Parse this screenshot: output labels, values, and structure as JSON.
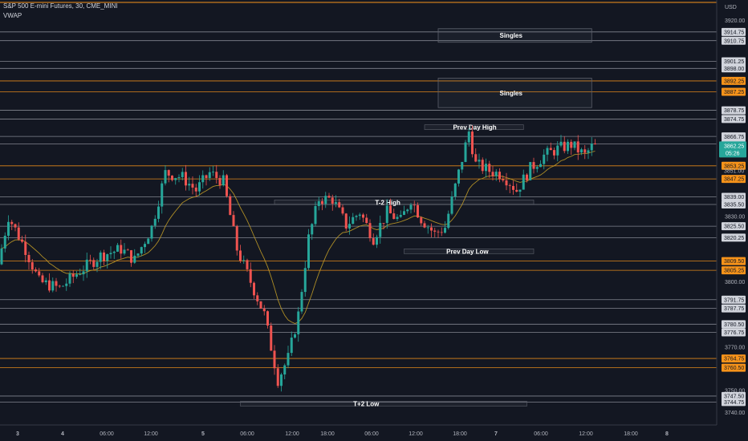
{
  "header": {
    "title": "S&P 500 E-mini Futures, 30, CME_MINI",
    "indicator": "VWAP"
  },
  "chart_data": {
    "type": "candlestick",
    "currency": "USD",
    "ylim": [
      3739,
      3925
    ],
    "price_ticks": [
      "3920.00",
      "3800.00",
      "3770.00",
      "3750.00",
      "3740.00",
      "3830.00"
    ],
    "x_ticks": [
      "3",
      "4",
      "06:00",
      "12:00",
      "5",
      "06:00",
      "12:00",
      "18:00",
      "06:00",
      "12:00",
      "18:00",
      "7",
      "06:00",
      "12:00",
      "18:00",
      "8"
    ],
    "levels": [
      {
        "value": 3914.75,
        "color": "white"
      },
      {
        "value": 3910.75,
        "color": "white"
      },
      {
        "value": 3901.25,
        "color": "white"
      },
      {
        "value": 3898.0,
        "color": "white"
      },
      {
        "value": 3892.25,
        "color": "orange"
      },
      {
        "value": 3887.25,
        "color": "orange"
      },
      {
        "value": 3878.75,
        "color": "white"
      },
      {
        "value": 3874.75,
        "color": "white"
      },
      {
        "value": 3866.75,
        "color": "white"
      },
      {
        "value": 3863.25,
        "color": "white"
      },
      {
        "value": 3853.25,
        "color": "orange"
      },
      {
        "value": 3847.25,
        "color": "orange"
      },
      {
        "value": 3839.0,
        "color": "white"
      },
      {
        "value": 3835.5,
        "color": "white"
      },
      {
        "value": 3825.5,
        "color": "white"
      },
      {
        "value": 3820.25,
        "color": "white"
      },
      {
        "value": 3809.5,
        "color": "orange"
      },
      {
        "value": 3805.25,
        "color": "orange"
      },
      {
        "value": 3791.75,
        "color": "white"
      },
      {
        "value": 3787.75,
        "color": "white"
      },
      {
        "value": 3780.5,
        "color": "white"
      },
      {
        "value": 3776.75,
        "color": "white"
      },
      {
        "value": 3764.75,
        "color": "orange"
      },
      {
        "value": 3760.5,
        "color": "orange"
      },
      {
        "value": 3747.5,
        "color": "white"
      },
      {
        "value": 3744.75,
        "color": "white"
      }
    ],
    "level_labels": [
      "3914.75",
      "3910.75",
      "3901.25",
      "3898.00",
      "3892.25",
      "3887.25",
      "3878.75",
      "3874.75",
      "3866.75",
      "3863.25",
      "3853.25",
      "3847.25",
      "3839.00",
      "3835.50",
      "3825.50",
      "3820.25",
      "3809.50",
      "3805.25",
      "3791.75",
      "3787.75",
      "3780.50",
      "3776.75",
      "3764.75",
      "3760.50",
      "3747.50",
      "3744.75"
    ],
    "current_price": {
      "value": 3862.25,
      "label": "3862.25",
      "countdown": "05:26"
    },
    "hidden_labels": [
      "3851.00"
    ],
    "zones": [
      {
        "label": "Singles",
        "top": 3916.25,
        "bottom": 3910.0,
        "start_bar": 128,
        "end_bar": 173
      },
      {
        "label": "Singles",
        "top": 3893.5,
        "bottom": 3880.0,
        "start_bar": 128,
        "end_bar": 173
      }
    ],
    "annotations": [
      {
        "label": "Prev Day High",
        "value": 3871.0,
        "start_bar": 124,
        "end_bar": 153
      },
      {
        "label": "T-2 High",
        "value": 3836.5,
        "start_bar": 80,
        "end_bar": 156
      },
      {
        "label": "Prev Day Low",
        "value": 3814.0,
        "start_bar": 118,
        "end_bar": 156
      },
      {
        "label": "T+2 Low",
        "value": 3744.0,
        "start_bar": 70,
        "end_bar": 154
      }
    ],
    "series": [
      {
        "name": "VWAP",
        "type": "line"
      },
      {
        "name": "candles",
        "type": "ohlc"
      }
    ]
  }
}
